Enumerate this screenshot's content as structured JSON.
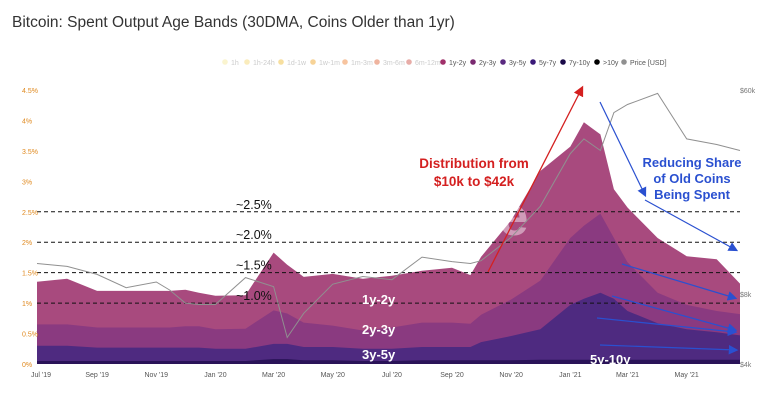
{
  "chart_data": {
    "type": "area",
    "title": "Bitcoin: Spent Output Age Bands (30DMA, Coins Older than 1yr)",
    "x_dates": [
      "2019-07-01",
      "2019-08-01",
      "2019-09-01",
      "2019-10-01",
      "2019-11-01",
      "2019-11-15",
      "2019-12-01",
      "2019-12-15",
      "2020-01-01",
      "2020-02-01",
      "2020-03-01",
      "2020-03-15",
      "2020-04-01",
      "2020-05-01",
      "2020-06-01",
      "2020-07-01",
      "2020-08-01",
      "2020-09-01",
      "2020-09-20",
      "2020-10-01",
      "2020-11-01",
      "2020-12-01",
      "2021-01-01",
      "2021-01-15",
      "2021-02-01",
      "2021-02-15",
      "2021-03-01",
      "2021-04-01",
      "2021-05-01",
      "2021-06-01",
      "2021-06-25"
    ],
    "x_ticks": [
      "Jul '19",
      "Sep '19",
      "Nov '19",
      "Jan '20",
      "Mar '20",
      "May '20",
      "Jul '20",
      "Sep '20",
      "Nov '20",
      "Jan '21",
      "Mar '21",
      "May '21"
    ],
    "y_ticks_left": [
      "0%",
      "0.5%",
      "1%",
      "1.5%",
      "2%",
      "2.5%",
      "3%",
      "3.5%",
      "4%",
      "4.5%"
    ],
    "y_ticks_right": [
      "$4k",
      "$8k",
      "$60k"
    ],
    "ylim_left": [
      0,
      4.6
    ],
    "log_price_axis": true,
    "series": [
      {
        "name": "5y-7y",
        "color": "#2a1358",
        "values": [
          0.05,
          0.05,
          0.05,
          0.05,
          0.05,
          0.05,
          0.05,
          0.05,
          0.05,
          0.05,
          0.08,
          0.08,
          0.06,
          0.06,
          0.05,
          0.05,
          0.06,
          0.06,
          0.06,
          0.06,
          0.06,
          0.07,
          0.07,
          0.07,
          0.07,
          0.07,
          0.07,
          0.07,
          0.07,
          0.07,
          0.07
        ]
      },
      {
        "name": "3y-5y",
        "color": "#4e2a80",
        "values": [
          0.25,
          0.25,
          0.22,
          0.22,
          0.22,
          0.22,
          0.22,
          0.22,
          0.2,
          0.2,
          0.25,
          0.25,
          0.22,
          0.22,
          0.2,
          0.2,
          0.22,
          0.22,
          0.22,
          0.3,
          0.4,
          0.5,
          0.9,
          1.0,
          1.1,
          1.0,
          0.8,
          0.6,
          0.5,
          0.45,
          0.4
        ]
      },
      {
        "name": "2y-3y",
        "color": "#8a3a80",
        "values": [
          0.35,
          0.35,
          0.33,
          0.33,
          0.33,
          0.33,
          0.35,
          0.35,
          0.32,
          0.33,
          0.55,
          0.5,
          0.4,
          0.35,
          0.3,
          0.35,
          0.4,
          0.4,
          0.38,
          0.45,
          0.6,
          0.8,
          1.1,
          1.2,
          1.3,
          1.0,
          0.8,
          0.5,
          0.4,
          0.35,
          0.35
        ]
      },
      {
        "name": "1y-2y",
        "color": "#a84a7e",
        "values": [
          0.7,
          0.75,
          0.6,
          0.6,
          0.6,
          0.6,
          0.6,
          0.55,
          0.55,
          0.55,
          0.95,
          0.8,
          0.75,
          0.85,
          0.85,
          0.85,
          0.85,
          0.9,
          0.8,
          0.95,
          1.3,
          1.8,
          1.5,
          1.7,
          1.3,
          0.8,
          0.9,
          0.9,
          0.8,
          0.85,
          0.5
        ]
      },
      {
        "name": "7y-10y",
        "color": "#110633",
        "values": [
          0.0,
          0.0,
          0.0,
          0.0,
          0.0,
          0.0,
          0.0,
          0.0,
          0.0,
          0.0,
          0.0,
          0.0,
          0.0,
          0.0,
          0.0,
          0.0,
          0.0,
          0.0,
          0.0,
          0.0,
          0.0,
          0.0,
          0.0,
          0.0,
          0.0,
          0.0,
          0.0,
          0.0,
          0.0,
          0.0,
          0.0
        ]
      },
      {
        "name": ">10y",
        "color": "#000000",
        "values": [
          0.0,
          0.0,
          0.0,
          0.0,
          0.0,
          0.0,
          0.0,
          0.0,
          0.0,
          0.0,
          0.0,
          0.0,
          0.0,
          0.0,
          0.0,
          0.0,
          0.0,
          0.0,
          0.0,
          0.0,
          0.0,
          0.0,
          0.0,
          0.0,
          0.0,
          0.0,
          0.0,
          0.0,
          0.0,
          0.0,
          0.0
        ]
      }
    ],
    "price_series": {
      "name": "Price [USD]",
      "color": "#909090",
      "values": [
        10800,
        10500,
        9700,
        8500,
        9000,
        8300,
        7300,
        7200,
        7200,
        9400,
        8600,
        5200,
        6600,
        8800,
        9500,
        9200,
        11500,
        11000,
        10800,
        11100,
        14000,
        19000,
        32000,
        37000,
        33000,
        48000,
        52000,
        58000,
        37000,
        35000,
        33000
      ]
    },
    "legend": [
      {
        "label": "1h",
        "color": "#f5e9a0",
        "active": false
      },
      {
        "label": "1h-24h",
        "color": "#f5d97a",
        "active": false
      },
      {
        "label": "1d-1w",
        "color": "#f0c040",
        "active": false
      },
      {
        "label": "1w-1m",
        "color": "#f0a830",
        "active": false
      },
      {
        "label": "1m-3m",
        "color": "#f08a40",
        "active": false
      },
      {
        "label": "3m-6m",
        "color": "#e06a40",
        "active": false
      },
      {
        "label": "6m-12m",
        "color": "#d05a50",
        "active": false
      },
      {
        "label": "1y-2y",
        "color": "#a0306a",
        "active": true
      },
      {
        "label": "2y-3y",
        "color": "#7a2a70",
        "active": true
      },
      {
        "label": "3y-5y",
        "color": "#5a2a80",
        "active": true
      },
      {
        "label": "5y-7y",
        "color": "#3a1a78",
        "active": true
      },
      {
        "label": "7y-10y",
        "color": "#1a0a48",
        "active": true
      },
      {
        "label": ">10y",
        "color": "#000000",
        "active": true
      },
      {
        "label": "Price [USD]",
        "color": "#909090",
        "active": true
      }
    ],
    "reference_lines": [
      {
        "label": "~2.5%",
        "value": 2.5
      },
      {
        "label": "~2.0%",
        "value": 2.0
      },
      {
        "label": "~1.5%",
        "value": 1.5
      },
      {
        "label": "~1.0%",
        "value": 1.0
      }
    ],
    "annotations": {
      "band_labels": [
        "1y-2y",
        "2y-3y",
        "3y-5y",
        "5y-10y"
      ],
      "distribution": [
        "Distribution from",
        "$10k to $42k"
      ],
      "reducing": [
        "Reducing Share",
        "of Old Coins",
        "Being Spent"
      ],
      "watermark": "glassnode"
    }
  }
}
